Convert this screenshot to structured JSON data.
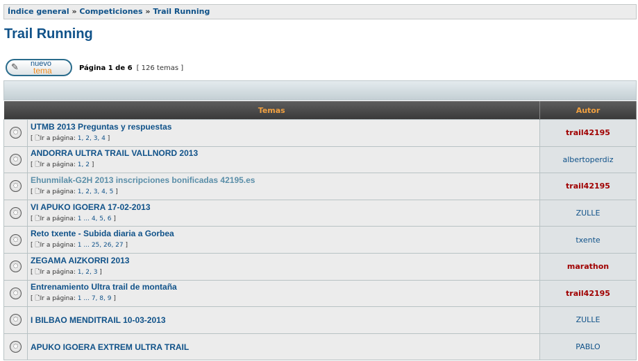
{
  "breadcrumb": [
    "Índice general",
    "Competiciones",
    "Trail Running"
  ],
  "breadcrumb_sep": "»",
  "title": "Trail Running",
  "new_topic": {
    "line1": "nuevo",
    "line2": "tema"
  },
  "pagination": {
    "page": "Página 1 de 6",
    "count": "[ 126 temas ]"
  },
  "table": {
    "headers": [
      "Temas",
      "Autor"
    ],
    "goto_label": "Ir a página:",
    "rows": [
      {
        "title": "UTMB 2013 Preguntas y respuestas",
        "pages": "1, 2, 3, 4",
        "author": "trail42195",
        "admin": true
      },
      {
        "title": "ANDORRA ULTRA TRAIL VALLNORD 2013",
        "pages": "1, 2",
        "author": "albertoperdiz",
        "admin": false
      },
      {
        "title": "Ehunmilak-G2H 2013 inscripciones bonificadas 42195.es",
        "pages": "1, 2, 3, 4, 5",
        "author": "trail42195",
        "admin": true,
        "visited": true
      },
      {
        "title": "VI APUKO IGOERA 17-02-2013",
        "pages": "1 ... 4, 5, 6",
        "author": "ZULLE",
        "admin": false
      },
      {
        "title": "Reto txente - Subida diaria a Gorbea",
        "pages": "1 ... 25, 26, 27",
        "author": "txente",
        "admin": false
      },
      {
        "title": "ZEGAMA AIZKORRI 2013",
        "pages": "1, 2, 3",
        "author": "marathon",
        "admin": true
      },
      {
        "title": "Entrenamiento Ultra trail de montaña",
        "pages": "1 ... 7, 8, 9",
        "author": "trail42195",
        "admin": true
      },
      {
        "title": "I BILBAO MENDITRAIL 10-03-2013",
        "pages": "",
        "author": "ZULLE",
        "admin": false
      },
      {
        "title": "APUKO IGOERA EXTREM ULTRA TRAIL",
        "pages": "",
        "author": "PABLO",
        "admin": false
      }
    ]
  }
}
